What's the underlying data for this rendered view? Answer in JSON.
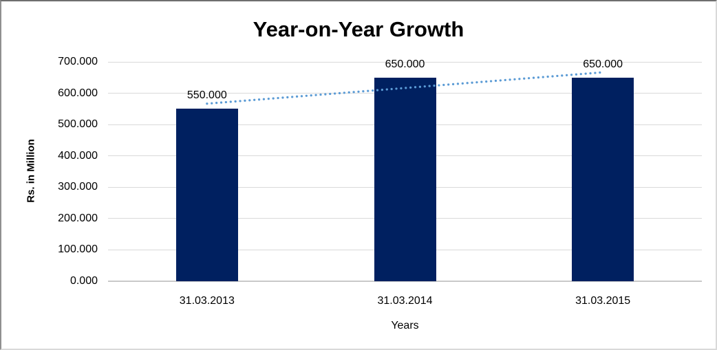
{
  "chart_data": {
    "type": "bar",
    "title": "Year-on-Year Growth",
    "xlabel": "Years",
    "ylabel": "Rs. in Million",
    "categories": [
      "31.03.2013",
      "31.03.2014",
      "31.03.2015"
    ],
    "values": [
      550,
      650,
      650
    ],
    "value_labels": [
      "550.000",
      "650.000",
      "650.000"
    ],
    "ylim": [
      0,
      700
    ],
    "ytick_values": [
      0,
      100,
      200,
      300,
      400,
      500,
      600,
      700
    ],
    "ytick_labels": [
      "0.000",
      "100.000",
      "200.000",
      "300.000",
      "400.000",
      "500.000",
      "600.000",
      "700.000"
    ],
    "grid": true,
    "legend": "none",
    "trendline": {
      "type": "linear",
      "style": "dotted",
      "color": "#5B9BD5",
      "start_value": 566.7,
      "end_value": 666.7
    },
    "colors": {
      "bar": "#002060",
      "gridline": "#d9d9d9",
      "axis_line": "#c9c9c9",
      "text": "#000000"
    }
  }
}
